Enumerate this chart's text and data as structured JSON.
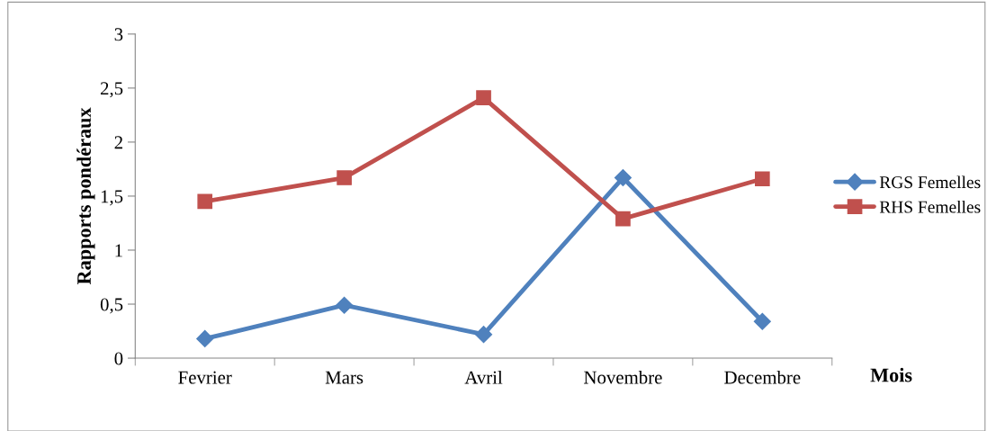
{
  "chart_data": {
    "type": "line",
    "xlabel": "Mois",
    "ylabel": "Rapports pondéraux",
    "categories": [
      "Fevrier",
      "Mars",
      "Avril",
      "Novembre",
      "Decembre"
    ],
    "series": [
      {
        "name": "RGS Femelles",
        "color": "#4f81bd",
        "marker": "diamond",
        "values": [
          0.18,
          0.49,
          0.22,
          1.67,
          0.34
        ]
      },
      {
        "name": "RHS Femelles",
        "color": "#c0504d",
        "marker": "square",
        "values": [
          1.45,
          1.67,
          2.41,
          1.29,
          1.66
        ]
      }
    ],
    "ylim": [
      0,
      3
    ],
    "yticks": [
      {
        "value": 0,
        "label": "0"
      },
      {
        "value": 0.5,
        "label": "0,5"
      },
      {
        "value": 1,
        "label": "1"
      },
      {
        "value": 1.5,
        "label": "1,5"
      },
      {
        "value": 2,
        "label": "2"
      },
      {
        "value": 2.5,
        "label": "2,5"
      },
      {
        "value": 3,
        "label": "3"
      }
    ],
    "grid": false,
    "legend": "right",
    "line_style": "solid"
  }
}
